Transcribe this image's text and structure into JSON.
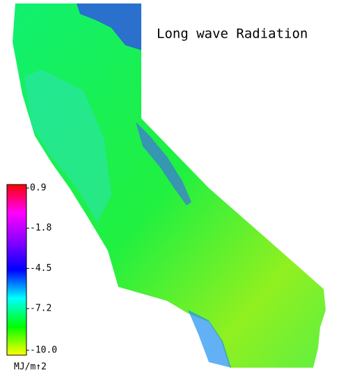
{
  "title": "Long wave Radiation",
  "colorbar": {
    "lim": [
      -10,
      0.9
    ],
    "ticks": [
      0.9,
      -1.8,
      -4.5,
      -7.2,
      {
        "value": -10,
        "label": "-10.0"
      }
    ],
    "colors": [
      "#ffff00",
      "#00ff00",
      "#00ffff",
      "#0000ff",
      "#8800ff",
      "#ff00ff",
      "#ff0000"
    ],
    "unit": "MJ/m↑2"
  }
}
